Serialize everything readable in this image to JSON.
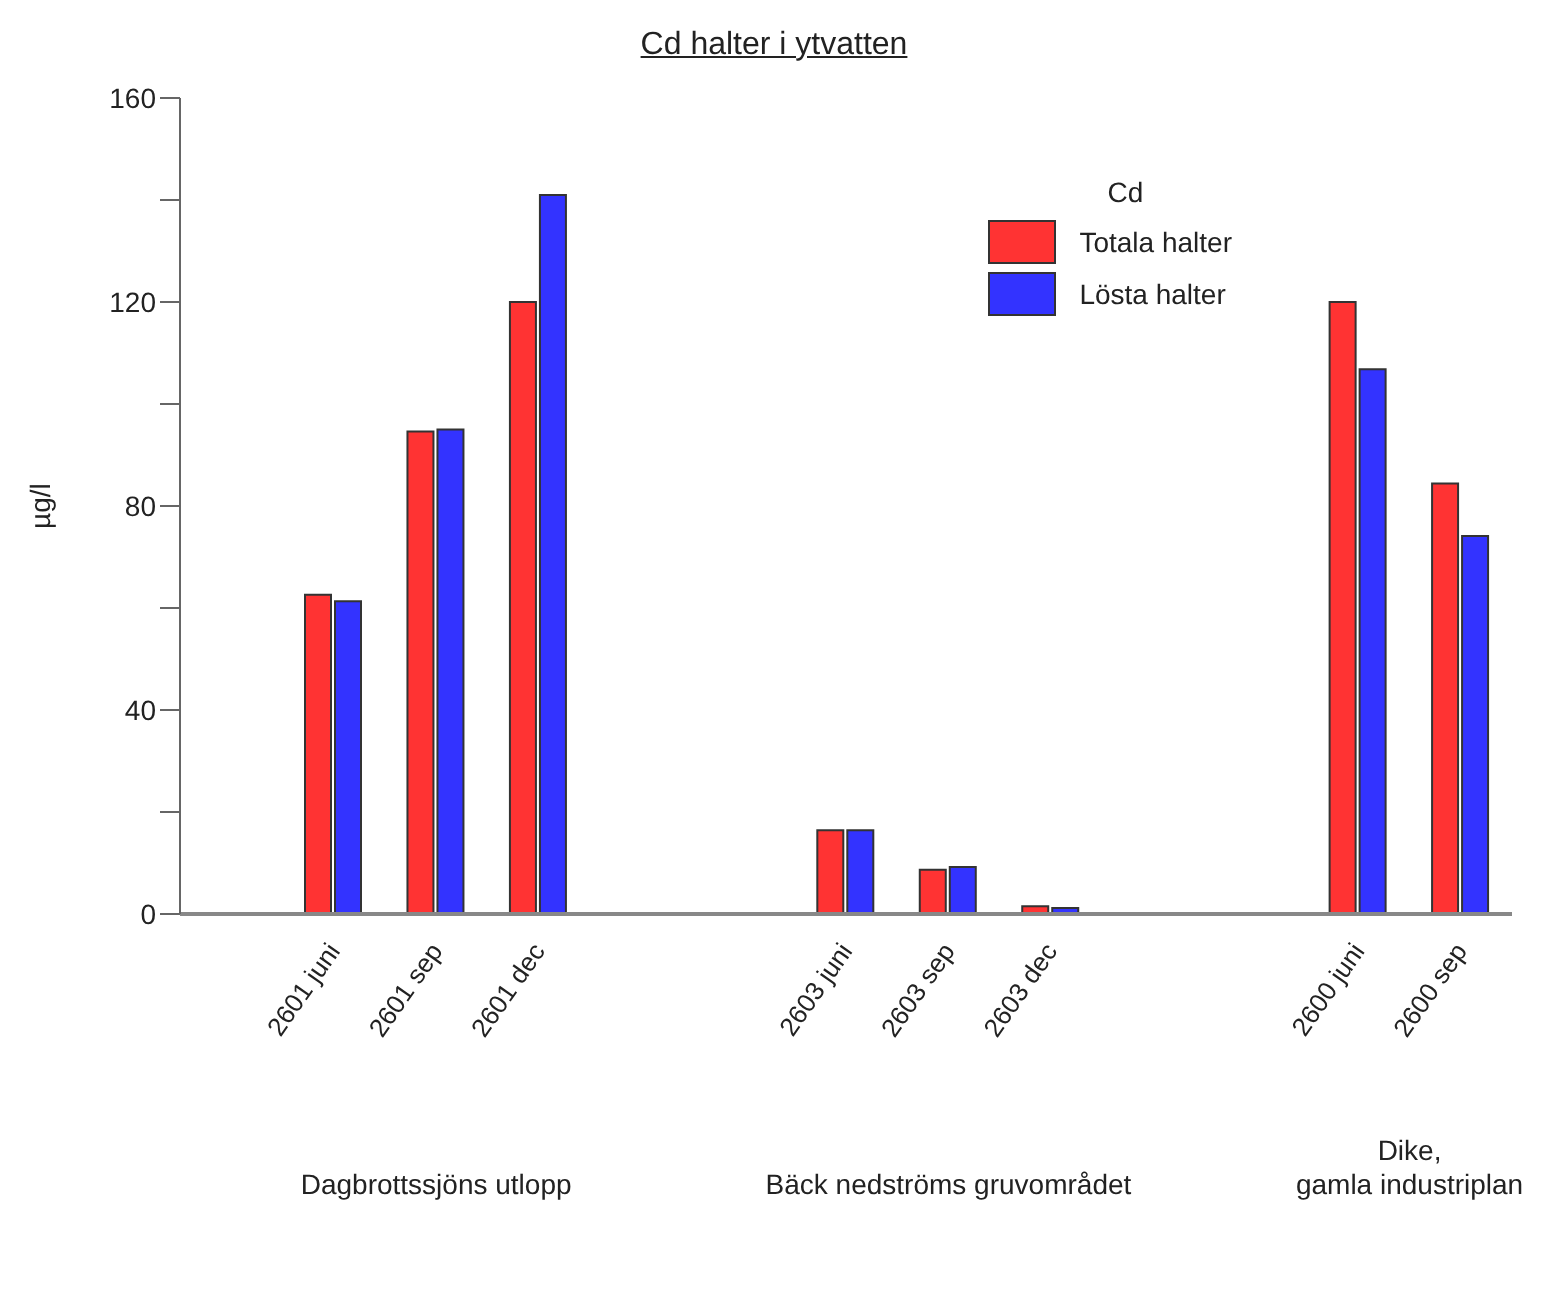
{
  "chart_data": {
    "type": "bar",
    "title": "Cd halter i ytvatten",
    "ylabel": "µg/l",
    "legend_title": "Cd",
    "legend": "top right",
    "categories": [
      null,
      "2601 juni",
      "2601 sep",
      "2601 dec",
      null,
      null,
      "2603 juni",
      "2603 sep",
      "2603 dec",
      null,
      null,
      "2600 juni",
      "2600 sep"
    ],
    "series": [
      {
        "name": "Totala halter",
        "color": "#ff3333",
        "values": [
          null,
          62.6,
          94.6,
          120,
          null,
          null,
          16.4,
          8.7,
          1.5,
          null,
          null,
          120,
          84.4
        ]
      },
      {
        "name": "Lösta halter",
        "color": "#3333ff",
        "values": [
          null,
          61.3,
          95,
          141,
          null,
          null,
          16.4,
          9.2,
          1.2,
          null,
          null,
          106.8,
          74.1
        ]
      }
    ],
    "ylim": [
      0,
      160
    ],
    "yticks": [
      0,
      {
        "value": 20,
        "label": null
      },
      40,
      {
        "value": 60,
        "label": null
      },
      80,
      {
        "value": 100,
        "label": null
      },
      120,
      {
        "value": 140,
        "label": null
      },
      160
    ],
    "annotations": [
      "Dagbrottssjöns utlopp",
      "Bäck nedströms gruvområdet",
      "Dike,\ngamla industriplan"
    ]
  }
}
